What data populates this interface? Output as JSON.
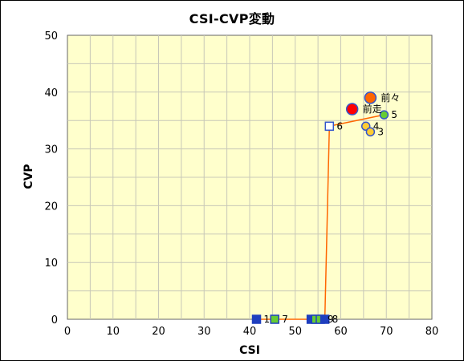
{
  "chart_data": {
    "type": "scatter",
    "title": "CSI-CVP変動",
    "xlabel": "CSI",
    "ylabel": "CVP",
    "xlim": [
      0,
      80
    ],
    "ylim": [
      0,
      50
    ],
    "x_ticks": [
      0,
      10,
      20,
      30,
      40,
      50,
      60,
      70,
      80
    ],
    "y_ticks": [
      0,
      10,
      20,
      30,
      40,
      50
    ],
    "grid": true,
    "plot_background": "#ffffcc",
    "line_color": "#ff6600",
    "path_order": [
      "1",
      "7",
      "8",
      "6",
      "5"
    ],
    "points": [
      {
        "label": "前々",
        "x": 66.5,
        "y": 39,
        "shape": "circle",
        "fill": "#ff6600",
        "stroke": "#3355cc",
        "size": "large"
      },
      {
        "label": "前走",
        "x": 62.5,
        "y": 37,
        "shape": "circle",
        "fill": "#ff0000",
        "stroke": "#3355cc",
        "size": "large"
      },
      {
        "label": "5",
        "x": 69.5,
        "y": 36,
        "shape": "circle",
        "fill": "#66cc33",
        "stroke": "#3355cc",
        "size": "small"
      },
      {
        "label": "6",
        "x": 57.5,
        "y": 34,
        "shape": "square",
        "fill": "#ffffff",
        "stroke": "#3355cc",
        "size": "small"
      },
      {
        "label": "4",
        "x": 65.5,
        "y": 34,
        "shape": "circle",
        "fill": "#ffcc33",
        "stroke": "#3355cc",
        "size": "small"
      },
      {
        "label": "3",
        "x": 66.5,
        "y": 33,
        "shape": "circle",
        "fill": "#ffcc33",
        "stroke": "#3355cc",
        "size": "small"
      },
      {
        "label": "1",
        "x": 41.5,
        "y": 0,
        "shape": "square",
        "fill": "#1f3fbf",
        "stroke": "#1f3fbf",
        "size": "small"
      },
      {
        "label": "7",
        "x": 45.5,
        "y": 0,
        "shape": "square",
        "fill": "#66cc33",
        "stroke": "#1f3fbf",
        "size": "small"
      },
      {
        "label": "",
        "x": 53.5,
        "y": 0,
        "shape": "square",
        "fill": "#1f3fbf",
        "stroke": "#1f3fbf",
        "size": "small"
      },
      {
        "label": "",
        "x": 54.5,
        "y": 0,
        "shape": "square",
        "fill": "#66cc33",
        "stroke": "#1f3fbf",
        "size": "small"
      },
      {
        "label": "9",
        "x": 55.5,
        "y": 0,
        "shape": "square",
        "fill": "#66cc33",
        "stroke": "#1f3fbf",
        "size": "small"
      },
      {
        "label": "8",
        "x": 56.5,
        "y": 0,
        "shape": "square",
        "fill": "#1f3fbf",
        "stroke": "#1f3fbf",
        "size": "small"
      }
    ]
  }
}
